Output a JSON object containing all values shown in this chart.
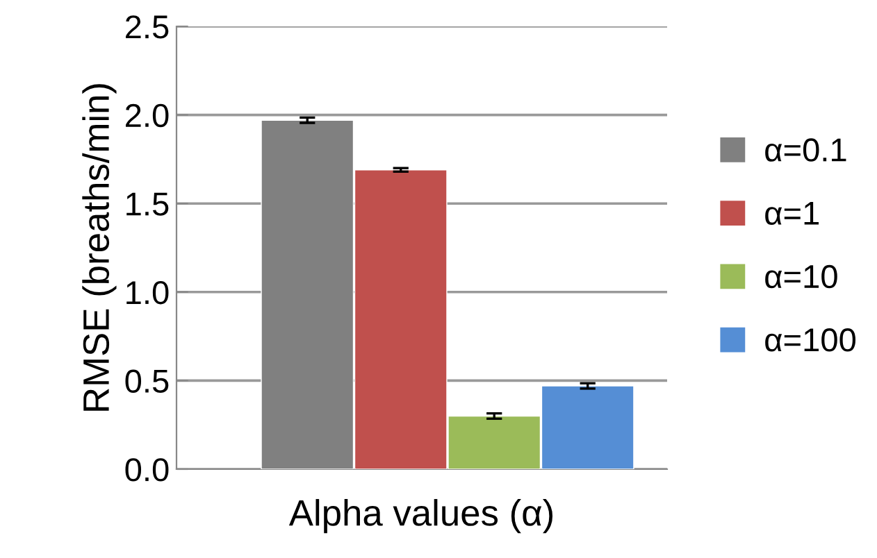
{
  "chart_data": {
    "type": "bar",
    "xlabel": "Alpha values (α)",
    "ylabel": "RMSE (breaths/min)",
    "categories": [
      null
    ],
    "series": [
      {
        "name": "α=0.1",
        "color": "#808080",
        "values": [
          1.97
        ],
        "errors": [
          0.015
        ]
      },
      {
        "name": "α=1",
        "color": "#c0504d",
        "values": [
          1.69
        ],
        "errors": [
          0.01
        ]
      },
      {
        "name": "α=10",
        "color": "#9bbb59",
        "values": [
          0.3
        ],
        "errors": [
          0.015
        ]
      },
      {
        "name": "α=100",
        "color": "#558ed5",
        "values": [
          0.47
        ],
        "errors": [
          0.015
        ]
      }
    ],
    "ylim": [
      0,
      2.5
    ],
    "yticks": [
      {
        "value": 0,
        "label": "0.0"
      },
      {
        "value": 0.5,
        "label": "0.5"
      },
      {
        "value": 1,
        "label": "1.0"
      },
      {
        "value": 1.5,
        "label": "1.5"
      },
      {
        "value": 2,
        "label": "2.0"
      },
      {
        "value": 2.5,
        "label": "2.5"
      }
    ],
    "grid": "y",
    "legend": "right"
  }
}
